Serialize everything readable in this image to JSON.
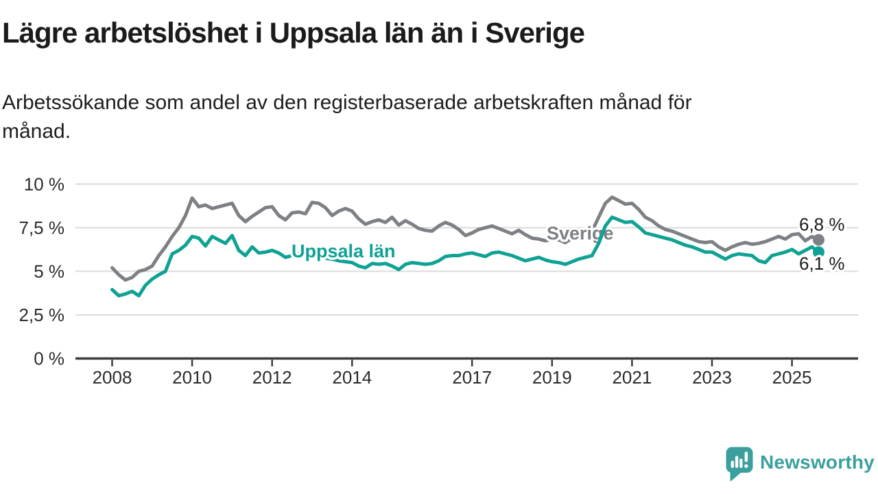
{
  "header": {
    "title": "Lägre arbetslöshet i Uppsala län än i Sverige",
    "subtitle_line1": "Arbetssökande som andel av den registerbaserade arbetskraften månad för",
    "subtitle_line2": "månad."
  },
  "chart_data": {
    "type": "line",
    "unit": "%",
    "grid": true,
    "legend_position": "inline-labels",
    "x_start": 2008,
    "x_end": 2025.667,
    "x_step_years": 0.166667,
    "ylim": [
      0,
      10
    ],
    "y_ticks": [
      {
        "v": 0,
        "label": "0 %"
      },
      {
        "v": 2.5,
        "label": "2,5 %"
      },
      {
        "v": 5,
        "label": "5 %"
      },
      {
        "v": 7.5,
        "label": "7,5 %"
      },
      {
        "v": 10,
        "label": "10 %"
      }
    ],
    "x_ticks": [
      {
        "year": 2008,
        "label": "2008"
      },
      {
        "year": 2010,
        "label": "2010"
      },
      {
        "year": 2012,
        "label": "2012"
      },
      {
        "year": 2014,
        "label": "2014"
      },
      {
        "year": 2017,
        "label": "2017"
      },
      {
        "year": 2019,
        "label": "2019"
      },
      {
        "year": 2021,
        "label": "2021"
      },
      {
        "year": 2023,
        "label": "2023"
      },
      {
        "year": 2025,
        "label": "2025"
      }
    ],
    "series": [
      {
        "name": "Sverige",
        "color": "#7d8084",
        "end_label": "6,8 %",
        "values": [
          5.2,
          4.8,
          4.5,
          4.65,
          5.0,
          5.1,
          5.3,
          5.9,
          6.4,
          7.0,
          7.5,
          8.2,
          9.2,
          8.7,
          8.8,
          8.6,
          8.7,
          8.8,
          8.9,
          8.2,
          7.85,
          8.15,
          8.4,
          8.65,
          8.7,
          8.2,
          7.95,
          8.35,
          8.4,
          8.3,
          8.95,
          8.9,
          8.65,
          8.2,
          8.45,
          8.6,
          8.45,
          8.0,
          7.7,
          7.85,
          7.95,
          7.8,
          8.1,
          7.65,
          7.9,
          7.7,
          7.45,
          7.35,
          7.3,
          7.6,
          7.8,
          7.65,
          7.4,
          7.05,
          7.2,
          7.4,
          7.5,
          7.6,
          7.45,
          7.3,
          7.15,
          7.35,
          7.1,
          6.9,
          6.85,
          6.75,
          6.85,
          6.8,
          6.65,
          6.9,
          7.0,
          7.1,
          7.3,
          8.1,
          8.9,
          9.25,
          9.05,
          8.85,
          8.9,
          8.55,
          8.1,
          7.9,
          7.6,
          7.4,
          7.3,
          7.15,
          7.0,
          6.85,
          6.7,
          6.65,
          6.7,
          6.4,
          6.2,
          6.4,
          6.55,
          6.65,
          6.55,
          6.6,
          6.7,
          6.85,
          7.0,
          6.85,
          7.1,
          7.15,
          6.75,
          7.0,
          6.8
        ]
      },
      {
        "name": "Uppsala län",
        "color": "#0fa294",
        "end_label": "6,1 %",
        "values": [
          3.95,
          3.6,
          3.7,
          3.85,
          3.6,
          4.2,
          4.55,
          4.8,
          5.0,
          6.0,
          6.2,
          6.5,
          7.0,
          6.9,
          6.45,
          7.0,
          6.8,
          6.6,
          7.05,
          6.2,
          5.9,
          6.4,
          6.05,
          6.1,
          6.2,
          6.05,
          5.8,
          5.9,
          6.0,
          5.9,
          5.85,
          5.8,
          5.75,
          5.7,
          5.6,
          5.55,
          5.5,
          5.3,
          5.2,
          5.45,
          5.4,
          5.45,
          5.3,
          5.1,
          5.4,
          5.5,
          5.45,
          5.4,
          5.45,
          5.6,
          5.85,
          5.9,
          5.9,
          6.0,
          6.05,
          5.95,
          5.85,
          6.05,
          6.1,
          6.0,
          5.9,
          5.75,
          5.6,
          5.7,
          5.8,
          5.65,
          5.55,
          5.5,
          5.4,
          5.55,
          5.7,
          5.8,
          5.9,
          6.6,
          7.6,
          8.1,
          7.95,
          7.8,
          7.85,
          7.55,
          7.2,
          7.1,
          7.0,
          6.9,
          6.8,
          6.65,
          6.5,
          6.4,
          6.25,
          6.1,
          6.1,
          5.9,
          5.7,
          5.9,
          6.0,
          5.95,
          5.9,
          5.6,
          5.5,
          5.9,
          6.0,
          6.1,
          6.25,
          6.0,
          6.2,
          6.4,
          6.1
        ]
      }
    ]
  },
  "footer": {
    "brand": "Newsworthy",
    "brand_color": "#3ba09d"
  }
}
